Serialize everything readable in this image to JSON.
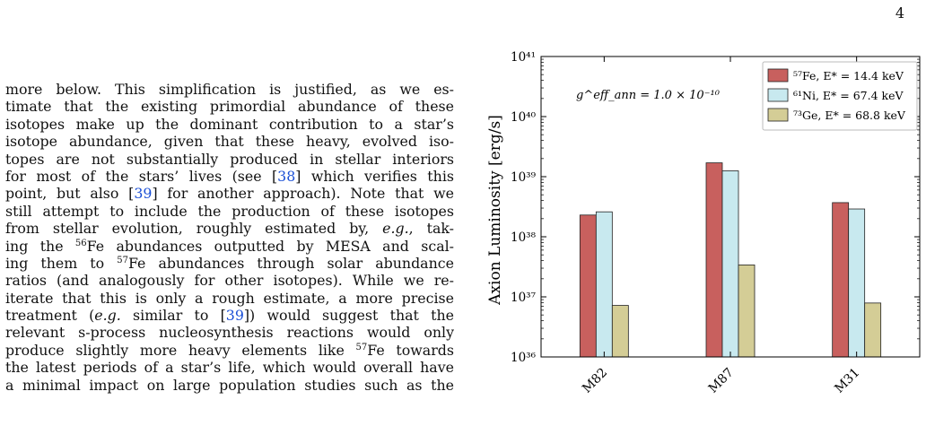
{
  "page_number": "4",
  "body_lines": [
    [
      "more below. This simplification is justified, as we es-"
    ],
    [
      "timate that the existing primordial abundance of these"
    ],
    [
      "isotopes make up the dominant contribution to a star’s"
    ],
    [
      "isotope abundance, given that these heavy, evolved iso-"
    ],
    [
      "topes are not substantially produced in stellar interiors"
    ],
    [
      "for most of the stars’ lives (see [",
      {
        "cite": "38"
      },
      "] which verifies this"
    ],
    [
      "point, but also [",
      {
        "cite": "39"
      },
      "] for another approach). Note that we"
    ],
    [
      "still attempt to include the production of these isotopes"
    ],
    [
      "from stellar evolution, roughly estimated by, ",
      {
        "em": "e.g."
      },
      ", tak-"
    ],
    [
      "ing the ",
      {
        "sup": "56"
      },
      "Fe abundances outputted by MESA and scal-"
    ],
    [
      "ing them to ",
      {
        "sup": "57"
      },
      "Fe abundances through solar abundance"
    ],
    [
      "ratios (and analogously for other isotopes). While we re-"
    ],
    [
      "iterate that this is only a rough estimate, a more precise"
    ],
    [
      "treatment (",
      {
        "em": "e.g."
      },
      " similar to [",
      {
        "cite": "39"
      },
      "]) would suggest that the"
    ],
    [
      "relevant s-process nucleosynthesis reactions would only"
    ],
    [
      "produce slightly more heavy elements like ",
      {
        "sup": "57"
      },
      "Fe towards"
    ],
    [
      "the latest periods of a star’s life, which would overall have"
    ],
    [
      "a minimal impact on large population studies such as the"
    ]
  ],
  "chart_data": {
    "type": "bar",
    "categories": [
      "M82",
      "M87",
      "M31"
    ],
    "series": [
      {
        "name": "⁵⁷Fe, E* = 14.4 keV",
        "color": "#c8605e",
        "values": [
          2.3e+38,
          1.7e+39,
          3.7e+38
        ]
      },
      {
        "name": "⁶¹Ni, E* = 67.4 keV",
        "color": "#c8e9ef",
        "values": [
          2.6e+38,
          1.25e+39,
          2.9e+38
        ]
      },
      {
        "name": "⁷³Ge, E* = 68.8 keV",
        "color": "#d4cd96",
        "values": [
          7.2e+36,
          3.4e+37,
          7.9e+36
        ]
      }
    ],
    "ylabel": "Axion Luminosity [erg/s]",
    "y_scale": "log",
    "ylim": [
      1e+36,
      1e+41
    ],
    "ytick_labels": [
      "10³⁶",
      "10³⁷",
      "10³⁸",
      "10³⁹",
      "10⁴⁰",
      "10⁴¹"
    ],
    "annotation": "g^eff_ann = 1.0 × 10⁻¹⁰",
    "legend_location": "top-right",
    "grid": false
  }
}
